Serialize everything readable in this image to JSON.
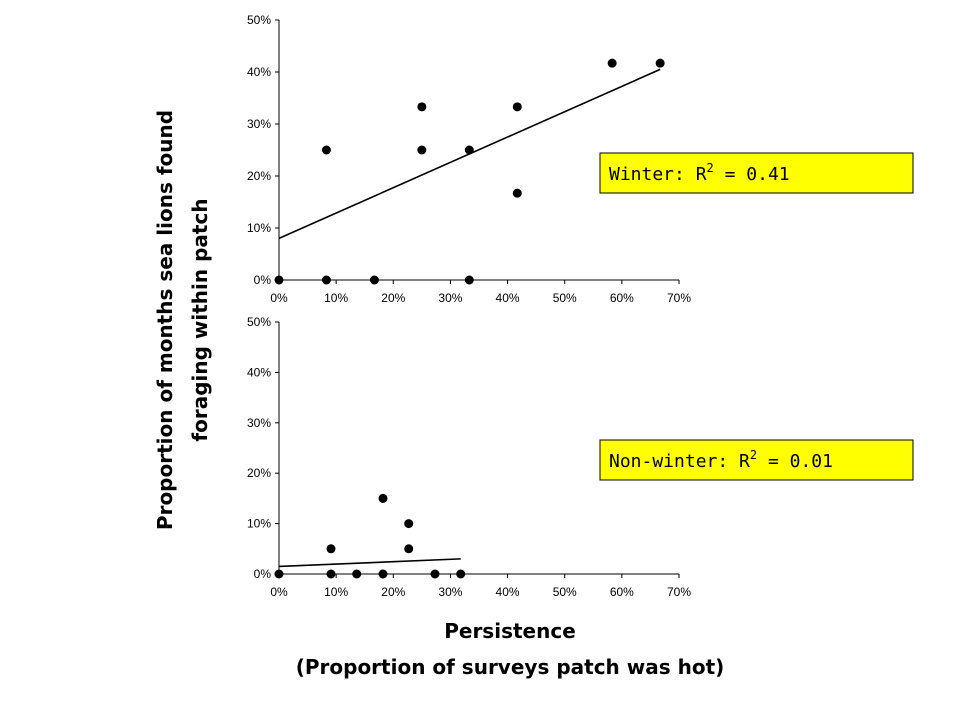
{
  "chart_data": [
    {
      "type": "scatter",
      "panel": "top",
      "annotation": {
        "label": "Winter:  R",
        "sup": "2",
        "value": " = 0.41"
      },
      "xlim": [
        0,
        0.7
      ],
      "ylim": [
        0,
        0.5
      ],
      "x_ticks": [
        "0%",
        "10%",
        "20%",
        "30%",
        "40%",
        "50%",
        "60%",
        "70%"
      ],
      "y_ticks": [
        "0%",
        "10%",
        "20%",
        "30%",
        "40%",
        "50%"
      ],
      "points": [
        [
          0,
          0
        ],
        [
          0.083,
          0
        ],
        [
          0.167,
          0
        ],
        [
          0.333,
          0
        ],
        [
          0.083,
          0.25
        ],
        [
          0.25,
          0.333
        ],
        [
          0.25,
          0.25
        ],
        [
          0.333,
          0.25
        ],
        [
          0.417,
          0.333
        ],
        [
          0.417,
          0.167
        ],
        [
          0.583,
          0.417
        ],
        [
          0.667,
          0.417
        ]
      ],
      "trendline": {
        "x": [
          0,
          0.667
        ],
        "y": [
          0.08,
          0.405
        ]
      }
    },
    {
      "type": "scatter",
      "panel": "bottom",
      "annotation": {
        "label": "Non-winter:  R",
        "sup": "2",
        "value": " = 0.01"
      },
      "xlim": [
        0,
        0.7
      ],
      "ylim": [
        0,
        0.5
      ],
      "x_ticks": [
        "0%",
        "10%",
        "20%",
        "30%",
        "40%",
        "50%",
        "60%",
        "70%"
      ],
      "y_ticks": [
        "0%",
        "10%",
        "20%",
        "30%",
        "40%",
        "50%"
      ],
      "points": [
        [
          0,
          0
        ],
        [
          0.091,
          0
        ],
        [
          0.136,
          0
        ],
        [
          0.182,
          0
        ],
        [
          0.273,
          0
        ],
        [
          0.318,
          0
        ],
        [
          0.091,
          0.05
        ],
        [
          0.182,
          0.15
        ],
        [
          0.227,
          0.1
        ],
        [
          0.227,
          0.05
        ]
      ],
      "trendline": {
        "x": [
          0,
          0.318
        ],
        "y": [
          0.015,
          0.03
        ]
      }
    }
  ],
  "labels": {
    "ylabel_line1": "Proportion of months sea lions found",
    "ylabel_line2": "foraging within patch",
    "xlabel_line1": "Persistence",
    "xlabel_line2": "(Proportion of surveys patch was hot)"
  }
}
